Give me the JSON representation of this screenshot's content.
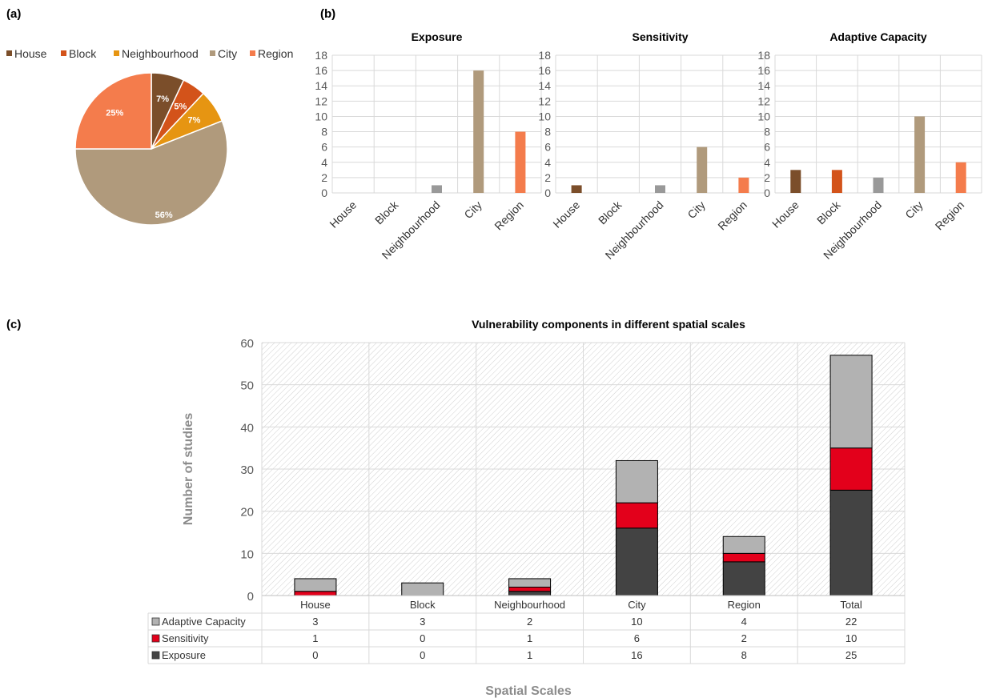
{
  "panel_labels": {
    "a": "(a)",
    "b": "(b)",
    "c": "(c)"
  },
  "colors": {
    "House": "#7b4e2a",
    "Block": "#d3531a",
    "Neighbourhood": "#e69512",
    "City": "#b09a7c",
    "Region": "#f47c4c",
    "neighbourhood_bar": "#999999",
    "adaptive_capacity": "#b2b2b2",
    "sensitivity": "#e3001b",
    "exposure": "#434343",
    "grid": "#d9d9d9"
  },
  "chart_data": [
    {
      "id": "a",
      "type": "pie",
      "legend": [
        "House",
        "Block",
        "Neighbourhood",
        "City",
        "Region"
      ],
      "legend_position": "top",
      "categories": [
        "House",
        "Block",
        "Neighbourhood",
        "City",
        "Region"
      ],
      "values": [
        7,
        5,
        7,
        56,
        25
      ],
      "labels": [
        "7%",
        "5%",
        "7%",
        "56%",
        "25%"
      ]
    },
    {
      "id": "b1",
      "type": "bar",
      "title": "Exposure",
      "categories": [
        "House",
        "Block",
        "Neighbourhood",
        "City",
        "Region"
      ],
      "values": [
        0,
        0,
        1,
        16,
        8
      ],
      "ylim": [
        0,
        18
      ],
      "yticks": [
        "0",
        "2",
        "4",
        "6",
        "8",
        "10",
        "12",
        "14",
        "16",
        "18"
      ],
      "grid": true
    },
    {
      "id": "b2",
      "type": "bar",
      "title": "Sensitivity",
      "categories": [
        "House",
        "Block",
        "Neighbourhood",
        "City",
        "Region"
      ],
      "values": [
        1,
        0,
        1,
        6,
        2
      ],
      "ylim": [
        0,
        18
      ],
      "yticks": [
        "0",
        "2",
        "4",
        "6",
        "8",
        "10",
        "12",
        "14",
        "16",
        "18"
      ],
      "grid": true
    },
    {
      "id": "b3",
      "type": "bar",
      "title": "Adaptive Capacity",
      "categories": [
        "House",
        "Block",
        "Neighbourhood",
        "City",
        "Region"
      ],
      "values": [
        3,
        3,
        2,
        10,
        4
      ],
      "ylim": [
        0,
        18
      ],
      "yticks": [
        "0",
        "2",
        "4",
        "6",
        "8",
        "10",
        "12",
        "14",
        "16",
        "18"
      ],
      "grid": true
    },
    {
      "id": "c",
      "type": "bar",
      "stacked": true,
      "title": "Vulnerability components in different spatial scales",
      "xlabel": "Spatial Scales",
      "ylabel": "Number of studies",
      "categories": [
        "House",
        "Block",
        "Neighbourhood",
        "City",
        "Region",
        "Total"
      ],
      "series": [
        {
          "name": "Exposure",
          "values": [
            0,
            0,
            1,
            16,
            8,
            25
          ]
        },
        {
          "name": "Sensitivity",
          "values": [
            1,
            0,
            1,
            6,
            2,
            10
          ]
        },
        {
          "name": "Adaptive Capacity",
          "values": [
            3,
            3,
            2,
            10,
            4,
            22
          ]
        }
      ],
      "table_rows": [
        "Adaptive Capacity",
        "Sensitivity",
        "Exposure"
      ],
      "ylim": [
        0,
        60
      ],
      "yticks": [
        "0",
        "10",
        "20",
        "30",
        "40",
        "50",
        "60"
      ],
      "grid": true
    }
  ]
}
